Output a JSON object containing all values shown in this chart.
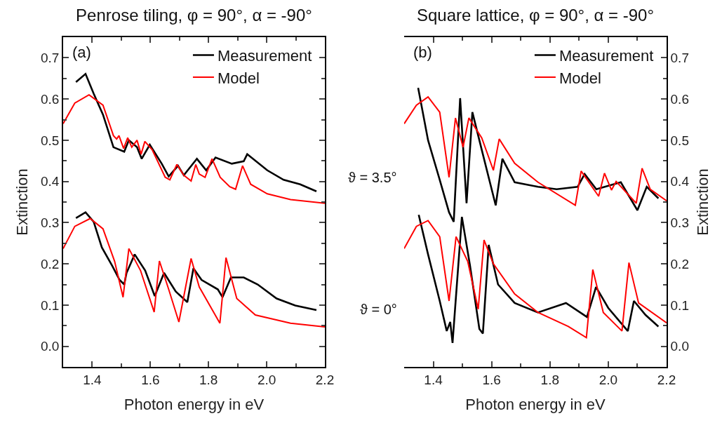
{
  "chart_data": [
    {
      "type": "line",
      "title": "Penrose tiling, φ = 90°, α = -90°",
      "xlabel": "Photon energy in eV",
      "ylabel": "Extinction",
      "xlim": [
        1.3,
        2.2
      ],
      "xticks": [
        1.4,
        1.6,
        1.8,
        {
          "value": 2.0,
          "label": "2.0"
        },
        2.2
      ],
      "ylim": [
        -0.05,
        0.75
      ],
      "yticks": [
        {
          "value": 0,
          "label": "0.0"
        },
        0.1,
        0.2,
        0.3,
        0.4,
        0.5,
        0.6,
        0.7
      ],
      "grid": false,
      "legend": "top right",
      "marker": "none",
      "line_style": "solid",
      "annotations": [
        "(a)"
      ],
      "series": [
        {
          "name": "Measurement",
          "color": "#000000",
          "x": [
            1.344,
            1.377,
            1.405,
            1.437,
            1.473,
            1.51,
            1.526,
            1.554,
            1.57,
            1.598,
            1.639,
            1.663,
            1.695,
            1.715,
            1.76,
            1.792,
            1.824,
            1.88,
            1.921,
            1.933,
            2.002,
            2.058,
            2.115,
            2.171
          ],
          "values": [
            0.641,
            0.661,
            0.613,
            0.562,
            0.483,
            0.472,
            0.5,
            0.483,
            0.455,
            0.489,
            0.443,
            0.412,
            0.438,
            0.415,
            0.455,
            0.427,
            0.458,
            0.443,
            0.449,
            0.466,
            0.427,
            0.404,
            0.393,
            0.376
          ]
        },
        {
          "name": "Model",
          "color": "#ff0000",
          "x": [
            1.3,
            1.34,
            1.389,
            1.437,
            1.473,
            1.484,
            1.492,
            1.508,
            1.522,
            1.536,
            1.554,
            1.568,
            1.581,
            1.606,
            1.651,
            1.667,
            1.691,
            1.715,
            1.74,
            1.756,
            1.768,
            1.788,
            1.812,
            1.84,
            1.873,
            1.893,
            1.917,
            1.945,
            2.002,
            2.082,
            2.2
          ],
          "values": [
            0.54,
            0.59,
            0.61,
            0.585,
            0.511,
            0.503,
            0.511,
            0.48,
            0.506,
            0.483,
            0.5,
            0.466,
            0.497,
            0.477,
            0.41,
            0.404,
            0.441,
            0.415,
            0.401,
            0.441,
            0.418,
            0.41,
            0.455,
            0.41,
            0.387,
            0.381,
            0.438,
            0.393,
            0.37,
            0.356,
            0.347
          ]
        },
        {
          "color": "#000000",
          "x": [
            1.344,
            1.377,
            1.405,
            1.433,
            1.469,
            1.494,
            1.51,
            1.518,
            1.546,
            1.582,
            1.615,
            1.647,
            1.687,
            1.727,
            1.748,
            1.776,
            1.832,
            1.848,
            1.877,
            1.921,
            1.969,
            2.034,
            2.098,
            2.171
          ],
          "values": [
            0.311,
            0.325,
            0.302,
            0.24,
            0.195,
            0.161,
            0.15,
            0.178,
            0.223,
            0.184,
            0.122,
            0.178,
            0.133,
            0.107,
            0.189,
            0.161,
            0.138,
            0.119,
            0.167,
            0.167,
            0.15,
            0.116,
            0.099,
            0.088
          ]
        },
        {
          "color": "#ff0000",
          "x": [
            1.3,
            1.34,
            1.393,
            1.437,
            1.477,
            1.506,
            1.526,
            1.566,
            1.613,
            1.631,
            1.663,
            1.698,
            1.74,
            1.768,
            1.839,
            1.86,
            1.897,
            1.961,
            2.082,
            2.2
          ],
          "values": [
            0.237,
            0.291,
            0.31,
            0.285,
            0.206,
            0.119,
            0.237,
            0.184,
            0.083,
            0.207,
            0.138,
            0.059,
            0.213,
            0.144,
            0.056,
            0.215,
            0.116,
            0.076,
            0.056,
            0.047
          ]
        }
      ]
    },
    {
      "type": "line",
      "title": "Square lattice, φ = 90°, α = -90°",
      "xlabel": "Photon energy in eV",
      "y2label": "Extinction",
      "xlim": [
        1.3,
        2.2
      ],
      "xticks": [
        1.4,
        1.6,
        1.8,
        {
          "value": 2.0,
          "label": "2.0"
        },
        2.2
      ],
      "y2lim": [
        -0.05,
        0.75
      ],
      "y2ticks": [
        {
          "value": 0,
          "label": "0.0"
        },
        0.1,
        0.2,
        0.3,
        0.4,
        0.5,
        0.6,
        0.7
      ],
      "grid": false,
      "legend": "top right",
      "marker": "none",
      "line_style": "solid",
      "annotations": [
        "(b)",
        "ϑ = 3.5°",
        "ϑ = 0°"
      ],
      "series": [
        {
          "name": "Measurement",
          "color": "#000000",
          "axis": "y2",
          "x": [
            1.348,
            1.382,
            1.422,
            1.454,
            1.47,
            1.492,
            1.514,
            1.534,
            1.566,
            1.614,
            1.637,
            1.679,
            1.759,
            1.823,
            1.895,
            1.919,
            1.959,
            2.043,
            2.1,
            2.132,
            2.172
          ],
          "values": [
            0.627,
            0.5,
            0.404,
            0.325,
            0.302,
            0.602,
            0.347,
            0.568,
            0.477,
            0.342,
            0.455,
            0.398,
            0.387,
            0.381,
            0.387,
            0.418,
            0.381,
            0.398,
            0.33,
            0.387,
            0.359
          ]
        },
        {
          "name": "Model",
          "color": "#ff0000",
          "axis": "y2",
          "x": [
            1.3,
            1.342,
            1.382,
            1.422,
            1.454,
            1.476,
            1.502,
            1.522,
            1.566,
            1.606,
            1.626,
            1.679,
            1.759,
            1.887,
            1.907,
            1.967,
            1.987,
            2.011,
            2.027,
            2.096,
            2.116,
            2.144,
            2.2
          ],
          "values": [
            0.54,
            0.585,
            0.605,
            0.568,
            0.41,
            0.554,
            0.483,
            0.554,
            0.506,
            0.427,
            0.503,
            0.444,
            0.398,
            0.342,
            0.425,
            0.364,
            0.42,
            0.379,
            0.4,
            0.347,
            0.432,
            0.381,
            0.353
          ]
        },
        {
          "color": "#000000",
          "axis": "y2",
          "x": [
            1.35,
            1.382,
            1.422,
            1.446,
            1.458,
            1.466,
            1.498,
            1.526,
            1.558,
            1.57,
            1.59,
            1.622,
            1.679,
            1.759,
            1.855,
            1.927,
            1.958,
            2.0,
            2.067,
            2.088,
            2.128,
            2.172
          ],
          "values": [
            0.319,
            0.223,
            0.11,
            0.037,
            0.059,
            0.008,
            0.314,
            0.195,
            0.042,
            0.031,
            0.246,
            0.15,
            0.105,
            0.082,
            0.105,
            0.071,
            0.144,
            0.093,
            0.037,
            0.11,
            0.076,
            0.048
          ]
        },
        {
          "color": "#ff0000",
          "axis": "y2",
          "x": [
            1.3,
            1.342,
            1.382,
            1.422,
            1.454,
            1.478,
            1.518,
            1.554,
            1.574,
            1.606,
            1.679,
            1.759,
            1.863,
            1.925,
            1.947,
            1.983,
            2.047,
            2.071,
            2.104,
            2.2
          ],
          "values": [
            0.237,
            0.291,
            0.305,
            0.266,
            0.11,
            0.266,
            0.206,
            0.09,
            0.258,
            0.2,
            0.127,
            0.082,
            0.048,
            0.021,
            0.186,
            0.082,
            0.037,
            0.203,
            0.105,
            0.057
          ]
        }
      ]
    }
  ]
}
